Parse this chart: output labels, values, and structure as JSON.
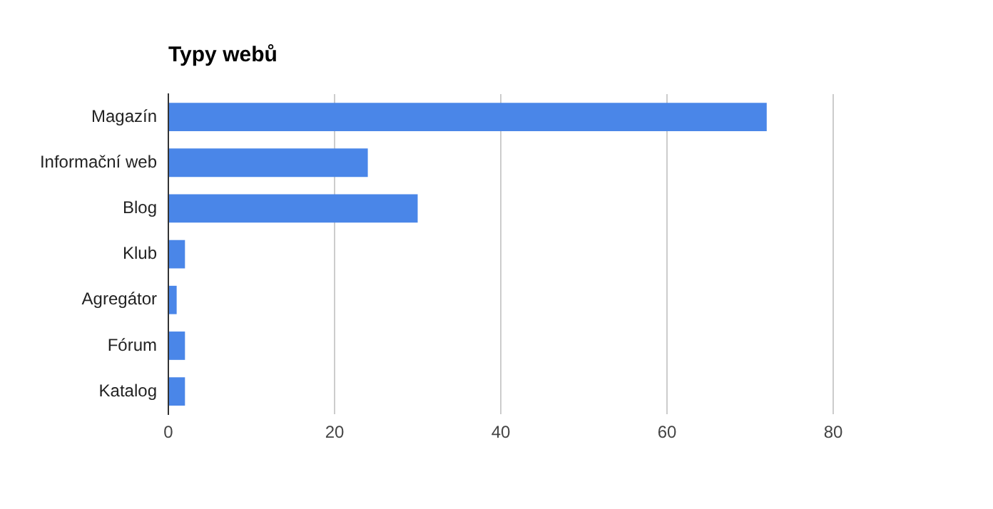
{
  "chart_data": {
    "type": "bar",
    "title": "Typy webů",
    "orientation": "horizontal",
    "categories": [
      "Magazín",
      "Informační web",
      "Blog",
      "Klub",
      "Agregátor",
      "Fórum",
      "Katalog"
    ],
    "values": [
      72,
      24,
      30,
      2,
      1,
      2,
      2
    ],
    "color": "#4a86e8",
    "xlim": [
      0,
      80
    ],
    "xticks": [
      0,
      20,
      40,
      60,
      80
    ],
    "grid": "x",
    "legend": false
  }
}
